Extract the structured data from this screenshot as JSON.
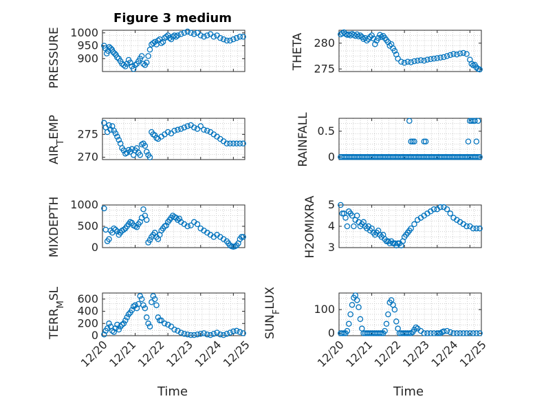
{
  "figure": {
    "title": "Figure 3 medium",
    "xlabel": "Time",
    "marker_color": "#0072BD",
    "axis_color": "#262626",
    "grid_color": "#bdbdbd",
    "x_tick_labels": [
      "12/20",
      "12/21",
      "12/22",
      "12/23",
      "12/24",
      "12/25"
    ]
  },
  "chart_data": [
    {
      "type": "scatter",
      "ylabel": "PRESSURE",
      "ylim": [
        850,
        1010
      ],
      "yticks": [
        900,
        950,
        1000
      ],
      "yticklabels": [
        "900",
        "950",
        "1000"
      ],
      "grid": "dotted",
      "x": [
        0.05,
        0.09,
        0.13,
        0.17,
        0.21,
        0.25,
        0.29,
        0.33,
        0.37,
        0.41,
        0.45,
        0.5,
        0.55,
        0.6,
        0.65,
        0.7,
        0.75,
        0.8,
        0.85,
        0.9,
        0.95,
        1.0,
        1.05,
        1.1,
        1.15,
        1.2,
        1.25,
        1.3,
        1.35,
        1.4,
        1.45,
        1.5,
        1.55,
        1.6,
        1.65,
        1.7,
        1.75,
        1.8,
        1.85,
        1.9,
        1.95,
        2.0,
        2.05,
        2.1,
        2.15,
        2.2,
        2.25,
        2.3,
        2.4,
        2.5,
        2.6,
        2.7,
        2.8,
        2.9,
        3.0,
        3.1,
        3.2,
        3.3,
        3.4,
        3.5,
        3.6,
        3.7,
        3.8,
        3.9,
        4.0,
        4.1,
        4.2,
        4.3
      ],
      "y": [
        950,
        940,
        920,
        930,
        945,
        940,
        935,
        925,
        920,
        915,
        905,
        900,
        890,
        880,
        875,
        870,
        880,
        895,
        885,
        870,
        860,
        875,
        880,
        890,
        900,
        910,
        880,
        875,
        885,
        910,
        935,
        955,
        960,
        965,
        955,
        970,
        975,
        960,
        965,
        980,
        985,
        990,
        980,
        975,
        985,
        990,
        985,
        990,
        995,
        1000,
        1005,
        1000,
        995,
        1000,
        990,
        985,
        990,
        995,
        985,
        990,
        980,
        975,
        970,
        970,
        975,
        980,
        985,
        985
      ]
    },
    {
      "type": "scatter",
      "ylabel": "THETA",
      "ylim": [
        274.5,
        282.5
      ],
      "yticks": [
        275,
        280
      ],
      "yticklabels": [
        "275",
        "280"
      ],
      "grid": "dotted",
      "x": [
        0.05,
        0.1,
        0.15,
        0.2,
        0.25,
        0.3,
        0.35,
        0.4,
        0.45,
        0.5,
        0.55,
        0.6,
        0.65,
        0.7,
        0.75,
        0.8,
        0.85,
        0.9,
        0.95,
        1.0,
        1.05,
        1.1,
        1.15,
        1.2,
        1.25,
        1.3,
        1.35,
        1.4,
        1.45,
        1.5,
        1.55,
        1.6,
        1.65,
        1.7,
        1.75,
        1.8,
        1.9,
        2.0,
        2.1,
        2.2,
        2.3,
        2.4,
        2.5,
        2.6,
        2.7,
        2.8,
        2.9,
        3.0,
        3.1,
        3.2,
        3.3,
        3.4,
        3.5,
        3.6,
        3.7,
        3.8,
        3.9,
        4.0,
        4.05,
        4.1,
        4.15,
        4.2,
        4.25,
        4.3
      ],
      "y": [
        281.7,
        281.9,
        282.1,
        281.8,
        281.6,
        281.7,
        281.5,
        281.8,
        281.6,
        281.4,
        281.7,
        281.3,
        281.5,
        281.2,
        280.8,
        281.0,
        280.5,
        280.8,
        281.2,
        281.5,
        280.9,
        279.8,
        280.5,
        281.0,
        281.6,
        281.2,
        281.4,
        281.0,
        280.6,
        280.2,
        279.5,
        279.8,
        279.0,
        278.5,
        277.8,
        277.0,
        276.4,
        276.2,
        276.4,
        276.3,
        276.5,
        276.6,
        276.7,
        276.6,
        276.8,
        276.9,
        277.0,
        277.1,
        277.2,
        277.3,
        277.5,
        277.7,
        277.9,
        277.8,
        278.0,
        278.1,
        277.9,
        276.8,
        276.0,
        275.7,
        275.8,
        275.3,
        275.0,
        274.9
      ]
    },
    {
      "type": "scatter",
      "ylabel": "AIR_TEMP",
      "ylim": [
        269.5,
        278.5
      ],
      "yticks": [
        270,
        275
      ],
      "yticklabels": [
        "270",
        "275"
      ],
      "grid": "dotted",
      "x": [
        0.05,
        0.1,
        0.15,
        0.2,
        0.25,
        0.3,
        0.35,
        0.4,
        0.45,
        0.5,
        0.55,
        0.6,
        0.65,
        0.7,
        0.75,
        0.8,
        0.85,
        0.9,
        0.95,
        1.0,
        1.05,
        1.1,
        1.15,
        1.2,
        1.25,
        1.3,
        1.35,
        1.4,
        1.45,
        1.5,
        1.55,
        1.6,
        1.65,
        1.7,
        1.8,
        1.9,
        2.0,
        2.1,
        2.2,
        2.3,
        2.4,
        2.5,
        2.6,
        2.7,
        2.8,
        2.9,
        3.0,
        3.1,
        3.2,
        3.3,
        3.4,
        3.5,
        3.6,
        3.7,
        3.8,
        3.9,
        4.0,
        4.1,
        4.2,
        4.3
      ],
      "y": [
        277.5,
        276.5,
        275.5,
        277.0,
        276.0,
        276.8,
        275.8,
        275.2,
        274.5,
        273.8,
        273.0,
        272.0,
        271.5,
        270.8,
        271.0,
        271.6,
        271.2,
        271.8,
        270.5,
        271.5,
        272.0,
        271.0,
        270.5,
        272.8,
        273.0,
        272.5,
        271.2,
        270.5,
        270.0,
        275.5,
        275.0,
        274.8,
        274.2,
        274.0,
        274.5,
        275.0,
        275.5,
        275.2,
        275.8,
        276.0,
        276.2,
        276.5,
        276.8,
        277.0,
        276.5,
        276.2,
        276.8,
        276.0,
        275.8,
        275.5,
        275.0,
        274.5,
        274.0,
        273.5,
        273.0,
        273.0,
        273.0,
        273.0,
        273.0,
        273.0
      ]
    },
    {
      "type": "scatter",
      "ylabel": "RAINFALL",
      "ylim": [
        -0.05,
        0.75
      ],
      "yticks": [
        0,
        0.5
      ],
      "yticklabels": [
        "0",
        "0.5"
      ],
      "grid": "dotted",
      "x": [
        0.05,
        0.1,
        0.15,
        0.2,
        0.25,
        0.3,
        0.35,
        0.4,
        0.45,
        0.5,
        0.55,
        0.6,
        0.65,
        0.7,
        0.75,
        0.8,
        0.85,
        0.9,
        0.95,
        1.0,
        1.05,
        1.1,
        1.15,
        1.2,
        1.25,
        1.3,
        1.35,
        1.4,
        1.45,
        1.5,
        1.55,
        1.6,
        1.65,
        1.7,
        1.75,
        1.8,
        1.85,
        1.9,
        1.95,
        2.0,
        2.05,
        2.1,
        2.15,
        2.2,
        2.25,
        2.3,
        2.35,
        2.4,
        2.45,
        2.5,
        2.55,
        2.6,
        2.65,
        2.7,
        2.75,
        2.8,
        2.85,
        2.9,
        2.95,
        3.0,
        3.05,
        3.1,
        3.15,
        3.2,
        3.25,
        3.3,
        3.35,
        3.4,
        3.45,
        3.5,
        3.55,
        3.6,
        3.65,
        3.7,
        3.75,
        3.8,
        3.85,
        3.9,
        3.95,
        4.0,
        4.05,
        4.1,
        4.15,
        4.2,
        4.25,
        4.3,
        2.15,
        2.2,
        2.25,
        2.3,
        2.6,
        2.65,
        3.95,
        4.0,
        4.05,
        4.1,
        4.15,
        4.2,
        4.25
      ],
      "y": [
        0,
        0,
        0,
        0,
        0,
        0,
        0,
        0,
        0,
        0,
        0,
        0,
        0,
        0,
        0,
        0,
        0,
        0,
        0,
        0,
        0,
        0,
        0,
        0,
        0,
        0,
        0,
        0,
        0,
        0,
        0,
        0,
        0,
        0,
        0,
        0,
        0,
        0,
        0,
        0,
        0,
        0,
        0,
        0,
        0,
        0,
        0,
        0,
        0,
        0,
        0,
        0,
        0,
        0,
        0,
        0,
        0,
        0,
        0,
        0,
        0,
        0,
        0,
        0,
        0,
        0,
        0,
        0,
        0,
        0,
        0,
        0,
        0,
        0,
        0,
        0,
        0,
        0,
        0,
        0,
        0,
        0,
        0,
        0,
        0,
        0,
        0.7,
        0.3,
        0.3,
        0.3,
        0.3,
        0.3,
        0.3,
        0.7,
        0.7,
        0.7,
        0.7,
        0.3,
        0.7
      ]
    },
    {
      "type": "scatter",
      "ylabel": "MIXDEPTH",
      "ylim": [
        0,
        1000
      ],
      "yticks": [
        0,
        500,
        1000
      ],
      "yticklabels": [
        "0",
        "500",
        "1000"
      ],
      "grid": "dotted",
      "x": [
        0.05,
        0.1,
        0.15,
        0.2,
        0.25,
        0.3,
        0.35,
        0.4,
        0.45,
        0.5,
        0.55,
        0.6,
        0.65,
        0.7,
        0.75,
        0.8,
        0.85,
        0.9,
        0.95,
        1.0,
        1.05,
        1.1,
        1.15,
        1.2,
        1.25,
        1.3,
        1.35,
        1.4,
        1.45,
        1.5,
        1.55,
        1.6,
        1.65,
        1.7,
        1.75,
        1.8,
        1.85,
        1.9,
        1.95,
        2.0,
        2.05,
        2.1,
        2.15,
        2.2,
        2.25,
        2.3,
        2.35,
        2.4,
        2.5,
        2.6,
        2.7,
        2.8,
        2.9,
        3.0,
        3.1,
        3.2,
        3.3,
        3.4,
        3.5,
        3.6,
        3.7,
        3.8,
        3.85,
        3.9,
        3.95,
        4.0,
        4.05,
        4.1,
        4.15,
        4.2,
        4.25,
        4.3
      ],
      "y": [
        920,
        420,
        150,
        200,
        400,
        350,
        450,
        420,
        380,
        300,
        350,
        400,
        420,
        450,
        500,
        550,
        600,
        580,
        520,
        500,
        480,
        550,
        600,
        700,
        900,
        750,
        650,
        120,
        180,
        250,
        300,
        350,
        250,
        200,
        300,
        400,
        450,
        500,
        520,
        600,
        650,
        700,
        750,
        720,
        700,
        650,
        680,
        600,
        550,
        500,
        520,
        600,
        550,
        450,
        400,
        350,
        300,
        250,
        300,
        250,
        200,
        150,
        100,
        50,
        30,
        20,
        30,
        50,
        100,
        200,
        250,
        250
      ]
    },
    {
      "type": "scatter",
      "ylabel": "H2OMIXRA",
      "ylim": [
        3,
        5
      ],
      "yticks": [
        3,
        4,
        5
      ],
      "yticklabels": [
        "3",
        "4",
        "5"
      ],
      "grid": "dotted",
      "x": [
        0.05,
        0.1,
        0.15,
        0.2,
        0.25,
        0.3,
        0.35,
        0.4,
        0.45,
        0.5,
        0.55,
        0.6,
        0.65,
        0.7,
        0.75,
        0.8,
        0.85,
        0.9,
        0.95,
        1.0,
        1.05,
        1.1,
        1.15,
        1.2,
        1.25,
        1.3,
        1.35,
        1.4,
        1.45,
        1.5,
        1.55,
        1.6,
        1.65,
        1.7,
        1.75,
        1.8,
        1.85,
        1.9,
        1.95,
        2.0,
        2.05,
        2.1,
        2.15,
        2.2,
        2.3,
        2.4,
        2.5,
        2.6,
        2.7,
        2.8,
        2.9,
        3.0,
        3.1,
        3.2,
        3.3,
        3.4,
        3.5,
        3.6,
        3.7,
        3.8,
        3.9,
        4.0,
        4.1,
        4.2,
        4.3
      ],
      "y": [
        5.0,
        4.6,
        4.6,
        4.4,
        4.0,
        4.7,
        4.6,
        4.5,
        4.0,
        4.3,
        4.5,
        4.2,
        4.0,
        4.1,
        4.2,
        4.0,
        3.9,
        4.0,
        3.8,
        3.9,
        3.7,
        3.6,
        3.7,
        3.8,
        3.6,
        3.5,
        3.6,
        3.4,
        3.3,
        3.3,
        3.2,
        3.3,
        3.2,
        3.2,
        3.1,
        3.2,
        3.2,
        3.1,
        3.3,
        3.5,
        3.6,
        3.7,
        3.8,
        3.9,
        4.1,
        4.3,
        4.4,
        4.5,
        4.6,
        4.7,
        4.8,
        4.8,
        4.9,
        4.9,
        4.8,
        4.6,
        4.4,
        4.3,
        4.2,
        4.1,
        4.0,
        4.0,
        3.9,
        3.9,
        3.9
      ]
    },
    {
      "type": "scatter",
      "ylabel": "TERR_MSL",
      "ylim": [
        0,
        700
      ],
      "yticks": [
        0,
        200,
        400,
        600
      ],
      "yticklabels": [
        "0",
        "200",
        "400",
        "600"
      ],
      "grid": "dotted",
      "x": [
        0.05,
        0.1,
        0.15,
        0.2,
        0.25,
        0.3,
        0.35,
        0.4,
        0.45,
        0.5,
        0.55,
        0.6,
        0.65,
        0.7,
        0.75,
        0.8,
        0.85,
        0.9,
        0.95,
        1.0,
        1.05,
        1.1,
        1.15,
        1.2,
        1.25,
        1.3,
        1.35,
        1.4,
        1.45,
        1.5,
        1.55,
        1.6,
        1.65,
        1.7,
        1.75,
        1.8,
        1.9,
        2.0,
        2.1,
        2.2,
        2.3,
        2.4,
        2.5,
        2.6,
        2.7,
        2.8,
        2.9,
        3.0,
        3.1,
        3.2,
        3.3,
        3.4,
        3.5,
        3.6,
        3.7,
        3.8,
        3.9,
        4.0,
        4.1,
        4.2,
        4.3
      ],
      "y": [
        20,
        80,
        120,
        200,
        150,
        80,
        60,
        120,
        180,
        100,
        150,
        180,
        200,
        250,
        300,
        350,
        380,
        420,
        480,
        500,
        450,
        520,
        650,
        600,
        500,
        450,
        300,
        200,
        150,
        550,
        650,
        600,
        500,
        300,
        250,
        250,
        200,
        180,
        150,
        100,
        80,
        50,
        30,
        20,
        10,
        10,
        20,
        30,
        40,
        20,
        10,
        30,
        50,
        20,
        10,
        30,
        50,
        70,
        80,
        60,
        40
      ]
    },
    {
      "type": "scatter",
      "ylabel": "SUN_FLUX",
      "ylim": [
        -10,
        170
      ],
      "yticks": [
        0,
        100
      ],
      "yticklabels": [
        "0",
        "100"
      ],
      "grid": "dotted",
      "x": [
        0.05,
        0.1,
        0.15,
        0.2,
        0.25,
        0.3,
        0.35,
        0.4,
        0.45,
        0.5,
        0.55,
        0.6,
        0.65,
        0.7,
        0.75,
        0.8,
        0.85,
        0.9,
        0.95,
        1.0,
        1.05,
        1.1,
        1.15,
        1.2,
        1.25,
        1.3,
        1.35,
        1.4,
        1.45,
        1.5,
        1.55,
        1.6,
        1.65,
        1.7,
        1.75,
        1.8,
        1.85,
        1.9,
        1.95,
        2.0,
        2.05,
        2.1,
        2.15,
        2.2,
        2.25,
        2.3,
        2.35,
        2.4,
        2.5,
        2.6,
        2.7,
        2.8,
        2.9,
        3.0,
        3.05,
        3.1,
        3.15,
        3.2,
        3.3,
        3.4,
        3.5,
        3.6,
        3.7,
        3.8,
        3.9,
        4.0,
        4.1,
        4.2,
        4.3
      ],
      "y": [
        0,
        0,
        0,
        0,
        10,
        40,
        80,
        120,
        150,
        160,
        140,
        110,
        60,
        20,
        0,
        0,
        0,
        0,
        0,
        0,
        0,
        0,
        0,
        0,
        0,
        0,
        0,
        10,
        40,
        80,
        130,
        140,
        120,
        100,
        50,
        20,
        0,
        0,
        0,
        0,
        0,
        0,
        0,
        0,
        5,
        15,
        25,
        20,
        10,
        0,
        0,
        0,
        0,
        0,
        0,
        0,
        5,
        8,
        10,
        5,
        0,
        0,
        0,
        0,
        0,
        0,
        0,
        0,
        0
      ]
    }
  ]
}
